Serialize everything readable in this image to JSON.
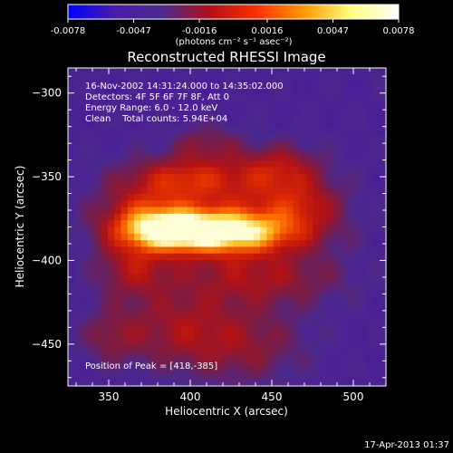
{
  "chart_data": {
    "type": "heatmap",
    "title": "Reconstructed RHESSI Image",
    "xlabel": "Heliocentric X (arcsec)",
    "ylabel": "Heliocentric Y (arcsec)",
    "xlim": [
      325,
      520
    ],
    "ylim": [
      -475,
      -285
    ],
    "x_ticks": [
      350,
      400,
      450,
      500
    ],
    "y_ticks": [
      -300,
      -350,
      -400,
      -450
    ],
    "colorbar": {
      "range": [
        -0.0078,
        0.0078
      ],
      "ticks": [
        "-0.0078",
        "-0.0047",
        "-0.0016",
        "0.0016",
        "0.0047",
        "0.0078"
      ],
      "unit_label": "(photons cm⁻² s⁻¹ asec⁻²)",
      "colormap": [
        "#0000ff",
        "#4a1aa8",
        "#4b2a8e",
        "#b01018",
        "#ff3000",
        "#ff9a00",
        "#ffff80",
        "#ffffff"
      ]
    },
    "annotations": [
      "16-Nov-2002 14:31:24.000 to 14:35:02.000",
      "Detectors: 4F 5F 6F 7F 8F, Att 0",
      "Energy Range: 6.0 - 12.0 keV",
      "Clean    Total counts: 5.94E+04"
    ],
    "peak_label": "Position of Peak = [418,-385]",
    "peak": [
      418,
      -385
    ],
    "sources": [
      {
        "x": 418,
        "y": -383,
        "sx": 34,
        "sy": 9,
        "amp": 1.0
      },
      {
        "x": 388,
        "y": -382,
        "sx": 18,
        "sy": 7,
        "amp": 0.35
      },
      {
        "x": 372,
        "y": -375,
        "sx": 18,
        "sy": 12,
        "amp": 0.35
      },
      {
        "x": 412,
        "y": -358,
        "sx": 40,
        "sy": 14,
        "amp": 0.3
      },
      {
        "x": 395,
        "y": -350,
        "sx": 22,
        "sy": 8,
        "amp": 0.22
      },
      {
        "x": 455,
        "y": -345,
        "sx": 18,
        "sy": 10,
        "amp": 0.28
      },
      {
        "x": 468,
        "y": -367,
        "sx": 18,
        "sy": 10,
        "amp": 0.28
      },
      {
        "x": 365,
        "y": -405,
        "sx": 16,
        "sy": 12,
        "amp": 0.28
      },
      {
        "x": 440,
        "y": -410,
        "sx": 36,
        "sy": 12,
        "amp": 0.3
      },
      {
        "x": 392,
        "y": -440,
        "sx": 22,
        "sy": 16,
        "amp": 0.24
      },
      {
        "x": 432,
        "y": -450,
        "sx": 26,
        "sy": 16,
        "amp": 0.24
      },
      {
        "x": 352,
        "y": -445,
        "sx": 14,
        "sy": 12,
        "amp": 0.2
      },
      {
        "x": 410,
        "y": -330,
        "sx": 14,
        "sy": 8,
        "amp": 0.18
      }
    ]
  },
  "footer_timestamp": "17-Apr-2013 01:37"
}
